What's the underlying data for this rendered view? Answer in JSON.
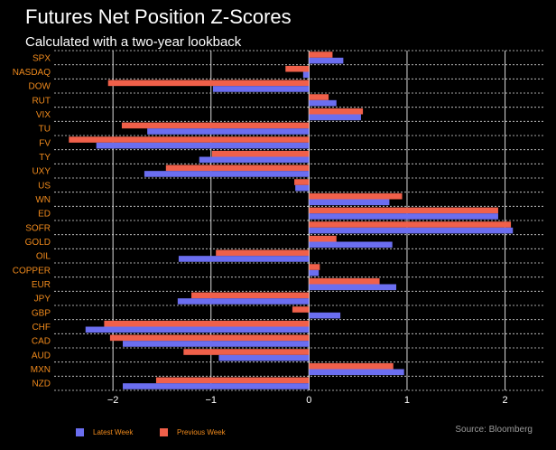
{
  "header": {
    "title": "Futures Net Position Z-Scores",
    "subtitle": "Calculated with a two-year lookback"
  },
  "source": "Source: Bloomberg",
  "colors": {
    "background": "#000000",
    "latest": "#6b6ef0",
    "previous": "#f0604a",
    "category_label": "#f08a1c",
    "tick_label": "#ffffff",
    "grid": "#d9d9d9",
    "zero_line": "#ffffff"
  },
  "chart_data": {
    "type": "bar",
    "orientation": "horizontal",
    "title": "Futures Net Position Z-Scores",
    "subtitle": "Calculated with a two-year lookback",
    "xlabel": "",
    "ylabel": "",
    "xlim": [
      -2.6,
      2.4
    ],
    "xticks": [
      -2,
      -1,
      0,
      1,
      2
    ],
    "xtick_labels": [
      "−2",
      "−1",
      "0",
      "1",
      "2"
    ],
    "grid": true,
    "legend_position": "bottom-left",
    "categories": [
      "SPX",
      "NASDAQ",
      "DOW",
      "RUT",
      "VIX",
      "TU",
      "FV",
      "TY",
      "UXY",
      "US",
      "WN",
      "ED",
      "SOFR",
      "GOLD",
      "OIL",
      "COPPER",
      "EUR",
      "JPY",
      "GBP",
      "CHF",
      "CAD",
      "AUD",
      "MXN",
      "NZD"
    ],
    "series": [
      {
        "name": "Latest Week",
        "color": "#6b6ef0",
        "values": [
          0.35,
          -0.06,
          -0.98,
          0.28,
          0.53,
          -1.65,
          -2.17,
          -1.12,
          -1.68,
          -0.14,
          0.82,
          1.93,
          2.08,
          0.85,
          -1.33,
          0.1,
          0.89,
          -1.34,
          0.32,
          -2.28,
          -1.9,
          -0.92,
          0.97,
          -1.9
        ]
      },
      {
        "name": "Previous Week",
        "color": "#f0604a",
        "values": [
          0.24,
          -0.24,
          -2.05,
          0.2,
          0.55,
          -1.91,
          -2.45,
          -0.99,
          -1.46,
          -0.15,
          0.95,
          1.93,
          2.06,
          0.28,
          -0.95,
          0.11,
          0.72,
          -1.2,
          -0.17,
          -2.09,
          -2.03,
          -1.28,
          0.86,
          -1.56
        ]
      }
    ]
  }
}
